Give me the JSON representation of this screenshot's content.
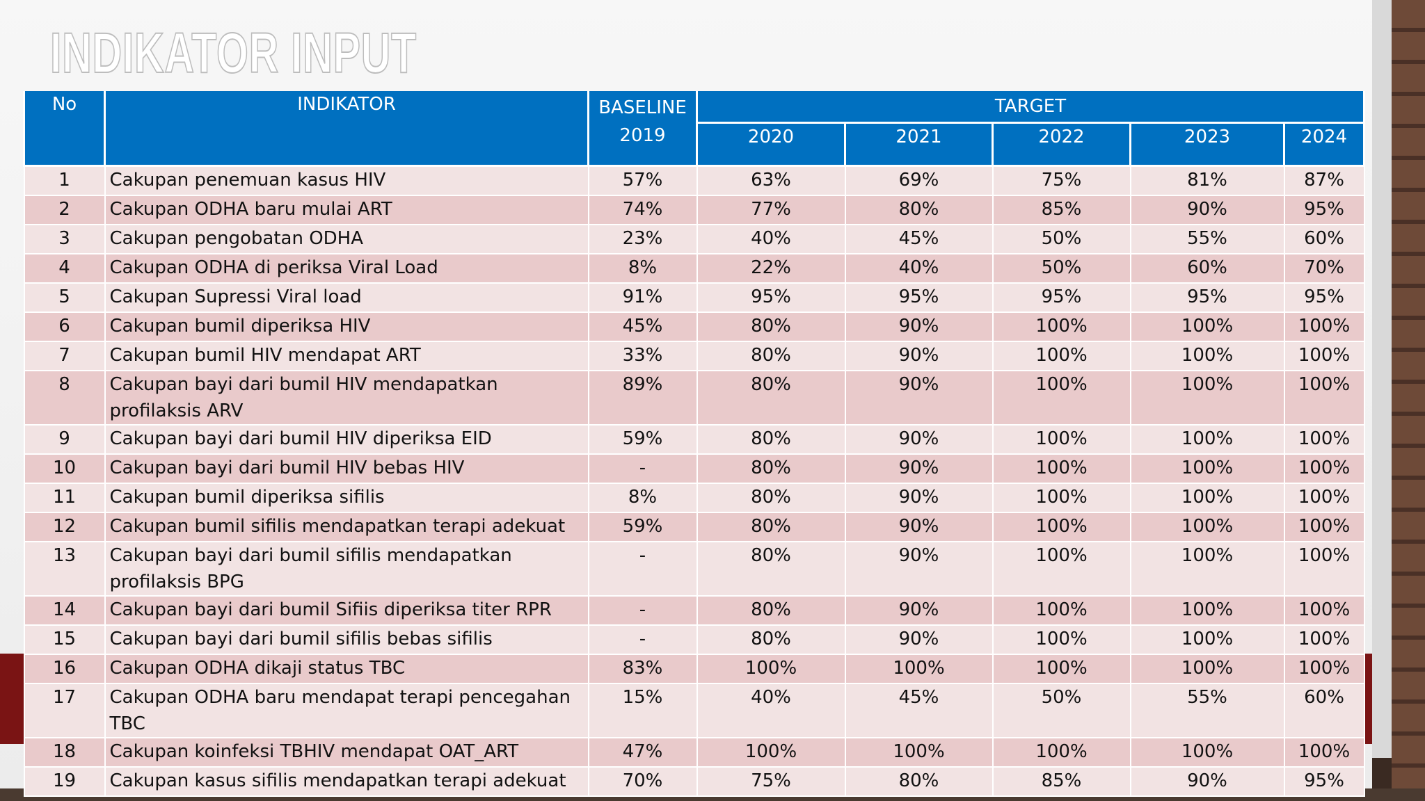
{
  "title": "INDIKATOR INPUT",
  "table": {
    "header": {
      "no": "No",
      "indikator": "INDIKATOR",
      "baseline": "BASELINE",
      "baseline_year": "2019",
      "target": "TARGET",
      "years": [
        "2020",
        "2021",
        "2022",
        "2023",
        "2024"
      ]
    },
    "rows": [
      [
        "1",
        "Cakupan penemuan kasus HIV",
        "57%",
        "63%",
        "69%",
        "75%",
        "81%",
        "87%"
      ],
      [
        "2",
        "Cakupan ODHA baru mulai ART",
        "74%",
        "77%",
        "80%",
        "85%",
        "90%",
        "95%"
      ],
      [
        "3",
        "Cakupan pengobatan ODHA",
        "23%",
        "40%",
        "45%",
        "50%",
        "55%",
        "60%"
      ],
      [
        "4",
        "Cakupan ODHA di periksa Viral Load",
        "8%",
        "22%",
        "40%",
        "50%",
        "60%",
        "70%"
      ],
      [
        "5",
        "Cakupan Supressi Viral load",
        "91%",
        "95%",
        "95%",
        "95%",
        "95%",
        "95%"
      ],
      [
        "6",
        "Cakupan bumil diperiksa HIV",
        "45%",
        "80%",
        "90%",
        "100%",
        "100%",
        "100%"
      ],
      [
        "7",
        "Cakupan bumil HIV mendapat ART",
        "33%",
        "80%",
        "90%",
        "100%",
        "100%",
        "100%"
      ],
      [
        "8",
        "Cakupan bayi dari bumil HIV mendapatkan profilaksis ARV",
        "89%",
        "80%",
        "90%",
        "100%",
        "100%",
        "100%"
      ],
      [
        "9",
        "Cakupan bayi dari bumil HIV diperiksa EID",
        "59%",
        "80%",
        "90%",
        "100%",
        "100%",
        "100%"
      ],
      [
        "10",
        "Cakupan bayi dari bumil HIV bebas HIV",
        "-",
        "80%",
        "90%",
        "100%",
        "100%",
        "100%"
      ],
      [
        "11",
        "Cakupan bumil diperiksa sifilis",
        "8%",
        "80%",
        "90%",
        "100%",
        "100%",
        "100%"
      ],
      [
        "12",
        "Cakupan bumil sifilis mendapatkan terapi adekuat",
        "59%",
        "80%",
        "90%",
        "100%",
        "100%",
        "100%"
      ],
      [
        "13",
        "Cakupan bayi dari bumil sifilis mendapatkan profilaksis BPG",
        "-",
        "80%",
        "90%",
        "100%",
        "100%",
        "100%"
      ],
      [
        "14",
        "Cakupan bayi dari bumil Sifiis diperiksa titer RPR",
        "-",
        "80%",
        "90%",
        "100%",
        "100%",
        "100%"
      ],
      [
        "15",
        "Cakupan bayi dari bumil sifilis bebas sifilis",
        "-",
        "80%",
        "90%",
        "100%",
        "100%",
        "100%"
      ],
      [
        "16",
        "Cakupan ODHA dikaji status TBC",
        "83%",
        "100%",
        "100%",
        "100%",
        "100%",
        "100%"
      ],
      [
        "17",
        "Cakupan ODHA baru mendapat terapi pencegahan TBC",
        "15%",
        "40%",
        "45%",
        "50%",
        "55%",
        "60%"
      ],
      [
        "18",
        "Cakupan koinfeksi TBHIV mendapat OAT_ART",
        "47%",
        "100%",
        "100%",
        "100%",
        "100%",
        "100%"
      ],
      [
        "19",
        "Cakupan kasus sifilis mendapatkan terapi adekuat",
        "70%",
        "75%",
        "80%",
        "85%",
        "90%",
        "95%"
      ]
    ]
  }
}
